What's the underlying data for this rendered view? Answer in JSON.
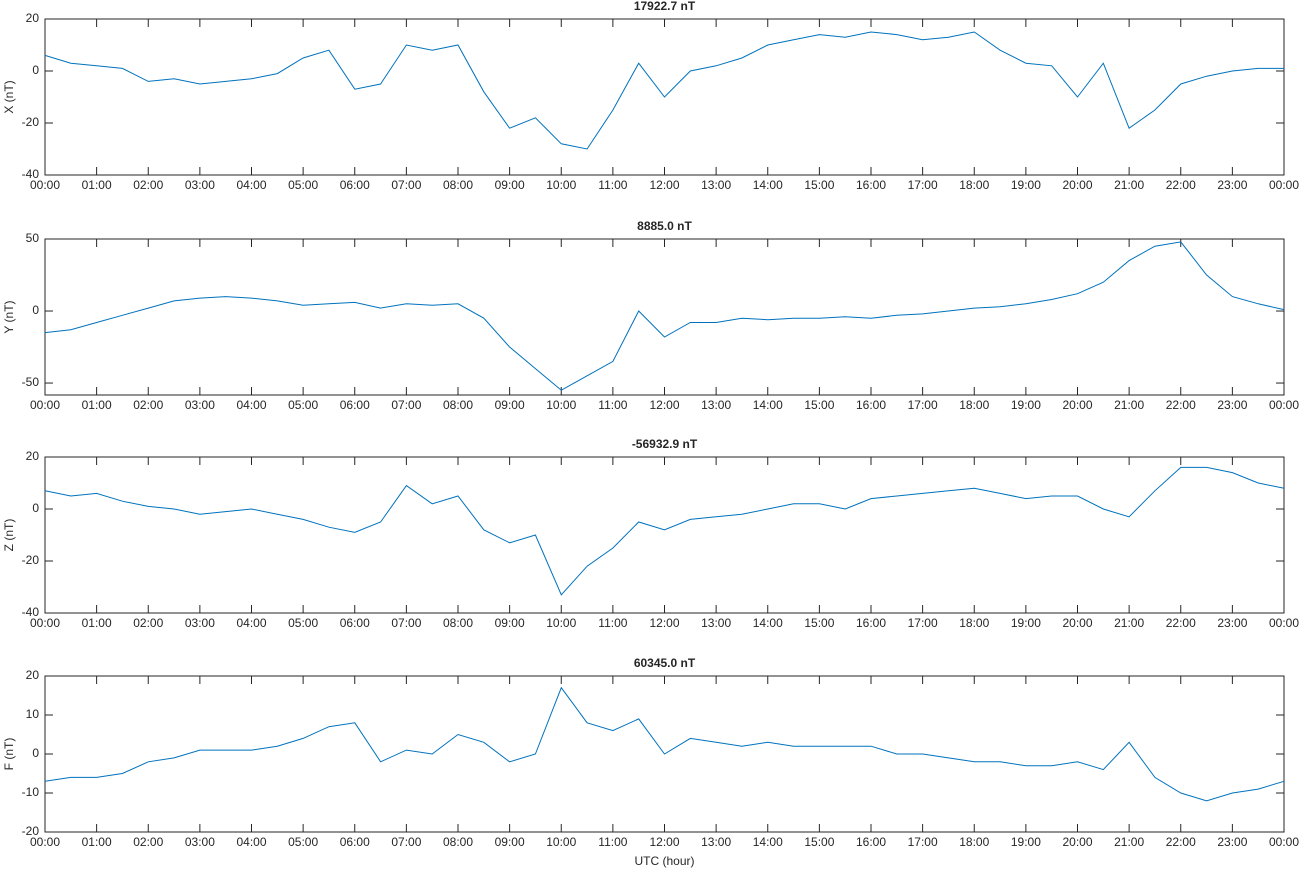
{
  "chart_data": [
    {
      "type": "line",
      "title": "17922.7 nT",
      "ylabel": "X (nT)",
      "color": "#0072bd",
      "x": [
        0,
        0.5,
        1,
        1.5,
        2,
        2.5,
        3,
        3.5,
        4,
        4.5,
        5,
        5.5,
        6,
        6.5,
        7,
        7.5,
        8,
        8.5,
        9,
        9.5,
        10,
        10.5,
        11,
        11.5,
        12,
        12.5,
        13,
        13.5,
        14,
        14.5,
        15,
        15.5,
        16,
        16.5,
        17,
        17.5,
        18,
        18.5,
        19,
        19.5,
        20,
        20.5,
        21,
        21.5,
        22,
        22.5,
        23,
        23.5,
        24
      ],
      "values": [
        6,
        3,
        2,
        1,
        -4,
        -3,
        -5,
        -4,
        -3,
        -1,
        5,
        8,
        -7,
        -5,
        10,
        8,
        10,
        -8,
        -22,
        -18,
        -28,
        -30,
        -15,
        3,
        -10,
        0,
        2,
        5,
        10,
        12,
        14,
        13,
        15,
        14,
        12,
        13,
        15,
        8,
        3,
        2,
        -10,
        3,
        -22,
        -15,
        -5,
        -2,
        0,
        1,
        1
      ],
      "xlim": [
        0,
        24
      ],
      "ylim": [
        -40,
        20
      ],
      "yticks": [
        -40,
        -20,
        0,
        20
      ],
      "xticks": [
        {
          "value": 0,
          "label": "00:00"
        },
        {
          "value": 1,
          "label": "01:00"
        },
        {
          "value": 2,
          "label": "02:00"
        },
        {
          "value": 3,
          "label": "03:00"
        },
        {
          "value": 4,
          "label": "04:00"
        },
        {
          "value": 5,
          "label": "05:00"
        },
        {
          "value": 6,
          "label": "06:00"
        },
        {
          "value": 7,
          "label": "07:00"
        },
        {
          "value": 8,
          "label": "08:00"
        },
        {
          "value": 9,
          "label": "09:00"
        },
        {
          "value": 10,
          "label": "10:00"
        },
        {
          "value": 11,
          "label": "11:00"
        },
        {
          "value": 12,
          "label": "12:00"
        },
        {
          "value": 13,
          "label": "13:00"
        },
        {
          "value": 14,
          "label": "14:00"
        },
        {
          "value": 15,
          "label": "15:00"
        },
        {
          "value": 16,
          "label": "16:00"
        },
        {
          "value": 17,
          "label": "17:00"
        },
        {
          "value": 18,
          "label": "18:00"
        },
        {
          "value": 19,
          "label": "19:00"
        },
        {
          "value": 20,
          "label": "20:00"
        },
        {
          "value": 21,
          "label": "21:00"
        },
        {
          "value": 22,
          "label": "22:00"
        },
        {
          "value": 23,
          "label": "23:00"
        },
        {
          "value": 24,
          "label": "00:00"
        }
      ]
    },
    {
      "type": "line",
      "title": "8885.0 nT",
      "ylabel": "Y (nT)",
      "color": "#0072bd",
      "x": [
        0,
        0.5,
        1,
        1.5,
        2,
        2.5,
        3,
        3.5,
        4,
        4.5,
        5,
        5.5,
        6,
        6.5,
        7,
        7.5,
        8,
        8.5,
        9,
        9.5,
        10,
        10.5,
        11,
        11.5,
        12,
        12.5,
        13,
        13.5,
        14,
        14.5,
        15,
        15.5,
        16,
        16.5,
        17,
        17.5,
        18,
        18.5,
        19,
        19.5,
        20,
        20.5,
        21,
        21.5,
        22,
        22.5,
        23,
        23.5,
        24
      ],
      "values": [
        -15,
        -13,
        -8,
        -3,
        2,
        7,
        9,
        10,
        9,
        7,
        4,
        5,
        6,
        2,
        5,
        4,
        5,
        -5,
        -25,
        -40,
        -55,
        -45,
        -35,
        0,
        -18,
        -8,
        -8,
        -5,
        -6,
        -5,
        -5,
        -4,
        -5,
        -3,
        -2,
        0,
        2,
        3,
        5,
        8,
        12,
        20,
        35,
        45,
        48,
        25,
        10,
        5,
        1
      ],
      "xlim": [
        0,
        24
      ],
      "ylim": [
        -58.3,
        50
      ],
      "yticks": [
        -50,
        0,
        50
      ],
      "xticks": [
        {
          "value": 0,
          "label": "00:00"
        },
        {
          "value": 1,
          "label": "01:00"
        },
        {
          "value": 2,
          "label": "02:00"
        },
        {
          "value": 3,
          "label": "03:00"
        },
        {
          "value": 4,
          "label": "04:00"
        },
        {
          "value": 5,
          "label": "05:00"
        },
        {
          "value": 6,
          "label": "06:00"
        },
        {
          "value": 7,
          "label": "07:00"
        },
        {
          "value": 8,
          "label": "08:00"
        },
        {
          "value": 9,
          "label": "09:00"
        },
        {
          "value": 10,
          "label": "10:00"
        },
        {
          "value": 11,
          "label": "11:00"
        },
        {
          "value": 12,
          "label": "12:00"
        },
        {
          "value": 13,
          "label": "13:00"
        },
        {
          "value": 14,
          "label": "14:00"
        },
        {
          "value": 15,
          "label": "15:00"
        },
        {
          "value": 16,
          "label": "16:00"
        },
        {
          "value": 17,
          "label": "17:00"
        },
        {
          "value": 18,
          "label": "18:00"
        },
        {
          "value": 19,
          "label": "19:00"
        },
        {
          "value": 20,
          "label": "20:00"
        },
        {
          "value": 21,
          "label": "21:00"
        },
        {
          "value": 22,
          "label": "22:00"
        },
        {
          "value": 23,
          "label": "23:00"
        },
        {
          "value": 24,
          "label": "00:00"
        }
      ]
    },
    {
      "type": "line",
      "title": "-56932.9 nT",
      "ylabel": "Z (nT)",
      "color": "#0072bd",
      "x": [
        0,
        0.5,
        1,
        1.5,
        2,
        2.5,
        3,
        3.5,
        4,
        4.5,
        5,
        5.5,
        6,
        6.5,
        7,
        7.5,
        8,
        8.5,
        9,
        9.5,
        10,
        10.5,
        11,
        11.5,
        12,
        12.5,
        13,
        13.5,
        14,
        14.5,
        15,
        15.5,
        16,
        16.5,
        17,
        17.5,
        18,
        18.5,
        19,
        19.5,
        20,
        20.5,
        21,
        21.5,
        22,
        22.5,
        23,
        23.5,
        24
      ],
      "values": [
        7,
        5,
        6,
        3,
        1,
        0,
        -2,
        -1,
        0,
        -2,
        -4,
        -7,
        -9,
        -5,
        9,
        2,
        5,
        -8,
        -13,
        -10,
        -33,
        -22,
        -15,
        -5,
        -8,
        -4,
        -3,
        -2,
        0,
        2,
        2,
        0,
        4,
        5,
        6,
        7,
        8,
        6,
        4,
        5,
        5,
        0,
        -3,
        7,
        16,
        16,
        14,
        10,
        8
      ],
      "xlim": [
        0,
        24
      ],
      "ylim": [
        -40,
        20
      ],
      "yticks": [
        -40,
        -20,
        0,
        20
      ],
      "xticks": [
        {
          "value": 0,
          "label": "00:00"
        },
        {
          "value": 1,
          "label": "01:00"
        },
        {
          "value": 2,
          "label": "02:00"
        },
        {
          "value": 3,
          "label": "03:00"
        },
        {
          "value": 4,
          "label": "04:00"
        },
        {
          "value": 5,
          "label": "05:00"
        },
        {
          "value": 6,
          "label": "06:00"
        },
        {
          "value": 7,
          "label": "07:00"
        },
        {
          "value": 8,
          "label": "08:00"
        },
        {
          "value": 9,
          "label": "09:00"
        },
        {
          "value": 10,
          "label": "10:00"
        },
        {
          "value": 11,
          "label": "11:00"
        },
        {
          "value": 12,
          "label": "12:00"
        },
        {
          "value": 13,
          "label": "13:00"
        },
        {
          "value": 14,
          "label": "14:00"
        },
        {
          "value": 15,
          "label": "15:00"
        },
        {
          "value": 16,
          "label": "16:00"
        },
        {
          "value": 17,
          "label": "17:00"
        },
        {
          "value": 18,
          "label": "18:00"
        },
        {
          "value": 19,
          "label": "19:00"
        },
        {
          "value": 20,
          "label": "20:00"
        },
        {
          "value": 21,
          "label": "21:00"
        },
        {
          "value": 22,
          "label": "22:00"
        },
        {
          "value": 23,
          "label": "23:00"
        },
        {
          "value": 24,
          "label": "00:00"
        }
      ]
    },
    {
      "type": "line",
      "title": "60345.0 nT",
      "ylabel": "F (nT)",
      "xlabel": "UTC (hour)",
      "color": "#0072bd",
      "x": [
        0,
        0.5,
        1,
        1.5,
        2,
        2.5,
        3,
        3.5,
        4,
        4.5,
        5,
        5.5,
        6,
        6.5,
        7,
        7.5,
        8,
        8.5,
        9,
        9.5,
        10,
        10.5,
        11,
        11.5,
        12,
        12.5,
        13,
        13.5,
        14,
        14.5,
        15,
        15.5,
        16,
        16.5,
        17,
        17.5,
        18,
        18.5,
        19,
        19.5,
        20,
        20.5,
        21,
        21.5,
        22,
        22.5,
        23,
        23.5,
        24
      ],
      "values": [
        -7,
        -6,
        -6,
        -5,
        -2,
        -1,
        1,
        1,
        1,
        2,
        4,
        7,
        8,
        -2,
        1,
        0,
        5,
        3,
        -2,
        0,
        17,
        8,
        6,
        9,
        0,
        4,
        3,
        2,
        3,
        2,
        2,
        2,
        2,
        0,
        0,
        -1,
        -2,
        -2,
        -3,
        -3,
        -2,
        -4,
        3,
        -6,
        -10,
        -12,
        -10,
        -9,
        -7
      ],
      "xlim": [
        0,
        24
      ],
      "ylim": [
        -20,
        20
      ],
      "yticks": [
        -20,
        -10,
        0,
        10,
        20
      ],
      "xticks": [
        {
          "value": 0,
          "label": "00:00"
        },
        {
          "value": 1,
          "label": "01:00"
        },
        {
          "value": 2,
          "label": "02:00"
        },
        {
          "value": 3,
          "label": "03:00"
        },
        {
          "value": 4,
          "label": "04:00"
        },
        {
          "value": 5,
          "label": "05:00"
        },
        {
          "value": 6,
          "label": "06:00"
        },
        {
          "value": 7,
          "label": "07:00"
        },
        {
          "value": 8,
          "label": "08:00"
        },
        {
          "value": 9,
          "label": "09:00"
        },
        {
          "value": 10,
          "label": "10:00"
        },
        {
          "value": 11,
          "label": "11:00"
        },
        {
          "value": 12,
          "label": "12:00"
        },
        {
          "value": 13,
          "label": "13:00"
        },
        {
          "value": 14,
          "label": "14:00"
        },
        {
          "value": 15,
          "label": "15:00"
        },
        {
          "value": 16,
          "label": "16:00"
        },
        {
          "value": 17,
          "label": "17:00"
        },
        {
          "value": 18,
          "label": "18:00"
        },
        {
          "value": 19,
          "label": "19:00"
        },
        {
          "value": 20,
          "label": "20:00"
        },
        {
          "value": 21,
          "label": "21:00"
        },
        {
          "value": 22,
          "label": "22:00"
        },
        {
          "value": 23,
          "label": "23:00"
        },
        {
          "value": 24,
          "label": "00:00"
        }
      ]
    }
  ]
}
